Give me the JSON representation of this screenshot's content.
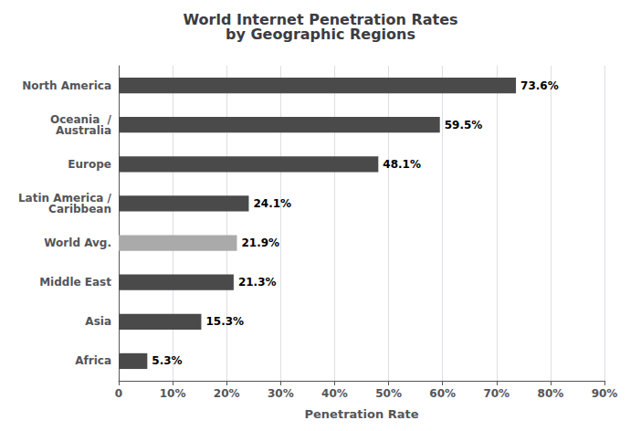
{
  "chart_data": {
    "type": "bar",
    "orientation": "horizontal",
    "title": "World Internet Penetration Rates\nby Geographic Regions",
    "xlabel": "Penetration Rate",
    "categories": [
      "North America",
      "Oceania  /\nAustralia",
      "Europe",
      "Latin America /\nCaribbean",
      "World Avg.",
      "Middle East",
      "Asia",
      "Africa"
    ],
    "values": [
      73.6,
      59.5,
      48.1,
      24.1,
      21.9,
      21.3,
      15.3,
      5.3
    ],
    "value_labels": [
      "73.6%",
      "59.5%",
      "48.1%",
      "24.1%",
      "21.9%",
      "21.3%",
      "15.3%",
      "5.3%"
    ],
    "data_labels": true,
    "colors": [
      "#4a4a4a",
      "#4a4a4a",
      "#4a4a4a",
      "#4a4a4a",
      "#aaaaaa",
      "#4a4a4a",
      "#4a4a4a",
      "#4a4a4a"
    ],
    "xlim": [
      0,
      90
    ],
    "xticks": [
      0,
      {
        "value": 10,
        "label": "10%"
      },
      {
        "value": 20,
        "label": "20%"
      },
      {
        "value": 30,
        "label": "30%"
      },
      {
        "value": 40,
        "label": "40%"
      },
      {
        "value": 50,
        "label": "50%"
      },
      {
        "value": 60,
        "label": "60%"
      },
      {
        "value": 70,
        "label": "70%"
      },
      {
        "value": 80,
        "label": "80%"
      },
      {
        "value": 90,
        "label": "90%"
      }
    ],
    "grid": true
  }
}
